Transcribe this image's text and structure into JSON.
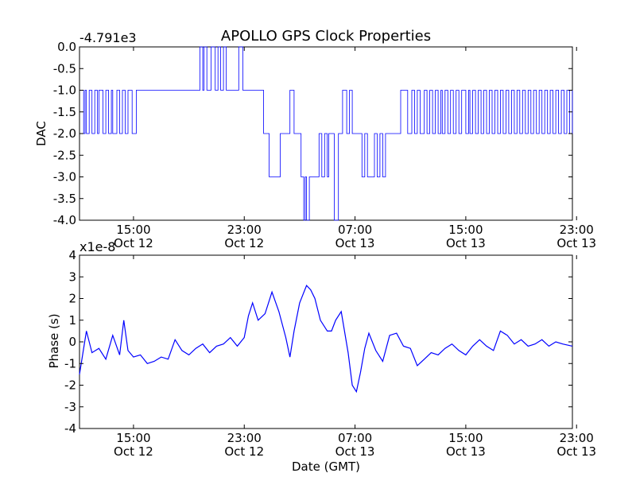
{
  "title": "APOLLO GPS Clock Properties",
  "chart_data": [
    {
      "type": "line",
      "ylabel": "DAC",
      "offset_label": "-4.791e3",
      "ylim": [
        -4.0,
        0.0
      ],
      "yticks": [
        "0.0",
        "-0.5",
        "-1.0",
        "-1.5",
        "-2.0",
        "-2.5",
        "-3.0",
        "-3.5",
        "-4.0"
      ],
      "xlim_hours": [
        11.1,
        46.7
      ],
      "xticks": [
        {
          "time": "15:00",
          "date": "Oct 12"
        },
        {
          "time": "23:00",
          "date": "Oct 12"
        },
        {
          "time": "07:00",
          "date": "Oct 13"
        },
        {
          "time": "15:00",
          "date": "Oct 13"
        },
        {
          "time": "23:00",
          "date": "Oct 13"
        }
      ],
      "line_color": "#0000ff",
      "series": [
        {
          "x": [
            11.1,
            11.4,
            11.5,
            11.6,
            11.8,
            12.0,
            12.2,
            12.4,
            12.5,
            12.8,
            13.0,
            13.2,
            13.4,
            13.5,
            13.8,
            14.0,
            14.2,
            14.4,
            14.6,
            14.9,
            15.2,
            18.0,
            19.8,
            20.0,
            20.1,
            20.3,
            20.6,
            20.9,
            21.1,
            21.3,
            21.5,
            21.7,
            21.9,
            22.6,
            22.9,
            23.0,
            24.4,
            24.6,
            24.8,
            25.4,
            25.6,
            26.3,
            26.6,
            27.1,
            27.3,
            27.4,
            27.5,
            27.7,
            28.1,
            28.4,
            28.6,
            28.8,
            29.0,
            29.1,
            29.3,
            29.5,
            29.8,
            30.0,
            30.1,
            30.2,
            30.4,
            30.6,
            30.8,
            31.3,
            31.5,
            31.7,
            31.9,
            32.4,
            32.6,
            32.8,
            33.0,
            33.2,
            33.6,
            33.7,
            34.0,
            34.2,
            34.3,
            34.8,
            35.1,
            35.3,
            35.5,
            35.7,
            36.0,
            36.2,
            36.4,
            36.6,
            36.8,
            37.0,
            37.2,
            37.3,
            37.5,
            37.7,
            37.9,
            38.1,
            38.3,
            38.5,
            38.7,
            39.0,
            39.2,
            39.3,
            39.5,
            39.7,
            39.9,
            40.1,
            40.3,
            40.5,
            40.7,
            40.9,
            41.1,
            41.3,
            41.5,
            41.7,
            41.9,
            42.1,
            42.3,
            42.5,
            42.7,
            42.9,
            43.1,
            43.3,
            43.5,
            43.7,
            43.9,
            44.1,
            44.3,
            44.5,
            44.7,
            44.9,
            45.1,
            45.3,
            45.5,
            45.7,
            45.9,
            46.1,
            46.3,
            46.5,
            46.7
          ],
          "y": [
            -1,
            -2,
            -1,
            -2,
            -1,
            -2,
            -1,
            -2,
            -1,
            -2,
            -1,
            -2,
            -1,
            -2,
            -1,
            -2,
            -1,
            -2,
            -1,
            -2,
            -1,
            -1,
            0,
            -1,
            0,
            -1,
            0,
            -1,
            0,
            -1,
            0,
            -1,
            -1,
            0,
            -1,
            -1,
            -2,
            -2,
            -3,
            -3,
            -2,
            -1,
            -2,
            -3,
            -4,
            -3,
            -4,
            -3,
            -3,
            -2,
            -3,
            -2,
            -3,
            -2,
            -2,
            -4,
            -2,
            -2,
            -1,
            -1,
            -2,
            -1,
            -2,
            -2,
            -3,
            -2,
            -3,
            -2,
            -3,
            -2,
            -3,
            -2,
            -2,
            -2,
            -2,
            -2,
            -1,
            -2,
            -1,
            -2,
            -1,
            -2,
            -1,
            -2,
            -1,
            -2,
            -1,
            -2,
            -1,
            -2,
            -1,
            -2,
            -1,
            -2,
            -1,
            -2,
            -1,
            -2,
            -1,
            -2,
            -1,
            -2,
            -1,
            -2,
            -1,
            -2,
            -1,
            -2,
            -1,
            -2,
            -1,
            -2,
            -1,
            -2,
            -1,
            -2,
            -1,
            -2,
            -1,
            -2,
            -1,
            -2,
            -1,
            -2,
            -1,
            -2,
            -1,
            -2,
            -1,
            -2,
            -1,
            -2,
            -1,
            -2,
            -1,
            -2,
            -1
          ]
        }
      ]
    },
    {
      "type": "line",
      "ylabel": "Phase (s)",
      "xlabel": "Date (GMT)",
      "offset_label": "x1e-8",
      "ylim": [
        -4,
        4
      ],
      "yticks": [
        "4",
        "3",
        "2",
        "1",
        "0",
        "-1",
        "-2",
        "-3",
        "-4"
      ],
      "xlim_hours": [
        11.1,
        46.7
      ],
      "xticks": [
        {
          "time": "15:00",
          "date": "Oct 12"
        },
        {
          "time": "23:00",
          "date": "Oct 12"
        },
        {
          "time": "07:00",
          "date": "Oct 13"
        },
        {
          "time": "15:00",
          "date": "Oct 13"
        },
        {
          "time": "23:00",
          "date": "Oct 13"
        }
      ],
      "line_color": "#0000ff",
      "series": [
        {
          "x": [
            11.1,
            11.6,
            12.0,
            12.5,
            13.0,
            13.5,
            14.0,
            14.3,
            14.6,
            15.0,
            15.5,
            16.0,
            16.5,
            17.0,
            17.5,
            18.0,
            18.5,
            19.0,
            19.5,
            20.0,
            20.5,
            21.0,
            21.5,
            22.0,
            22.5,
            23.0,
            23.3,
            23.6,
            24.0,
            24.5,
            25.0,
            25.5,
            26.0,
            26.3,
            26.6,
            27.0,
            27.5,
            27.8,
            28.1,
            28.5,
            29.0,
            29.3,
            29.6,
            30.0,
            30.5,
            30.8,
            31.1,
            31.4,
            31.7,
            32.0,
            32.5,
            33.0,
            33.5,
            34.0,
            34.5,
            35.0,
            35.5,
            36.0,
            36.5,
            37.0,
            37.5,
            38.0,
            38.5,
            39.0,
            39.5,
            40.0,
            40.5,
            41.0,
            41.5,
            42.0,
            42.5,
            43.0,
            43.5,
            44.0,
            44.5,
            45.0,
            45.5,
            46.0,
            46.7
          ],
          "y": [
            -1.5,
            0.5,
            -0.5,
            -0.3,
            -0.8,
            0.3,
            -0.6,
            1.0,
            -0.4,
            -0.7,
            -0.6,
            -1.0,
            -0.9,
            -0.7,
            -0.8,
            0.1,
            -0.4,
            -0.6,
            -0.3,
            -0.1,
            -0.5,
            -0.2,
            -0.1,
            0.2,
            -0.2,
            0.2,
            1.2,
            1.8,
            1.0,
            1.3,
            2.3,
            1.4,
            0.2,
            -0.7,
            0.5,
            1.8,
            2.6,
            2.4,
            2.0,
            1.0,
            0.5,
            0.5,
            1.0,
            1.4,
            -0.5,
            -2.0,
            -2.3,
            -1.4,
            -0.3,
            0.4,
            -0.4,
            -0.9,
            0.3,
            0.4,
            -0.2,
            -0.3,
            -1.1,
            -0.8,
            -0.5,
            -0.6,
            -0.3,
            -0.1,
            -0.4,
            -0.6,
            -0.2,
            0.1,
            -0.2,
            -0.4,
            0.5,
            0.3,
            -0.1,
            0.1,
            -0.2,
            -0.1,
            0.1,
            -0.2,
            0.0,
            -0.1,
            -0.2
          ]
        }
      ]
    }
  ]
}
